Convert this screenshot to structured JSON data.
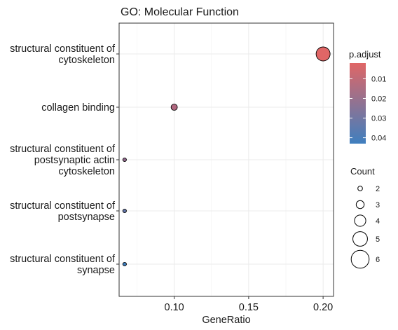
{
  "chart_data": {
    "type": "scatter",
    "title": "GO: Molecular Function",
    "xlabel": "GeneRatio",
    "ylabel": "",
    "xlim": [
      0.063,
      0.207
    ],
    "x_ticks": [
      "0.10",
      "0.15",
      "0.20"
    ],
    "x_tick_values": [
      0.1,
      0.15,
      0.2
    ],
    "grid": true,
    "categories": [
      {
        "lines": [
          "structural constituent of",
          "cytoskeleton"
        ]
      },
      {
        "lines": [
          "collagen binding"
        ]
      },
      {
        "lines": [
          "structural constituent of",
          "postsynaptic actin",
          "cytoskeleton"
        ]
      },
      {
        "lines": [
          "structural constituent of",
          "postsynapse"
        ]
      },
      {
        "lines": [
          "structural constituent of",
          "synapse"
        ]
      }
    ],
    "points": [
      {
        "category_index": 0,
        "gene_ratio": 0.2,
        "count": 6,
        "p_adjust": 0.002
      },
      {
        "category_index": 1,
        "gene_ratio": 0.1,
        "count": 3,
        "p_adjust": 0.016
      },
      {
        "category_index": 2,
        "gene_ratio": 0.0667,
        "count": 2,
        "p_adjust": 0.024
      },
      {
        "category_index": 3,
        "gene_ratio": 0.0667,
        "count": 2,
        "p_adjust": 0.035
      },
      {
        "category_index": 4,
        "gene_ratio": 0.0667,
        "count": 2,
        "p_adjust": 0.043
      }
    ],
    "color_legend": {
      "title": "p.adjust",
      "range": [
        0.002,
        0.043
      ],
      "ticks": [
        0.01,
        0.02,
        0.03,
        0.04
      ],
      "tick_labels": [
        "0.01",
        "0.02",
        "0.03",
        "0.04"
      ],
      "low_color": "#e06666",
      "high_color": "#3f7fbf"
    },
    "size_legend": {
      "title": "Count",
      "values": [
        2,
        3,
        4,
        5,
        6
      ],
      "labels": [
        "2",
        "3",
        "4",
        "5",
        "6"
      ]
    },
    "legend_position": "right"
  }
}
